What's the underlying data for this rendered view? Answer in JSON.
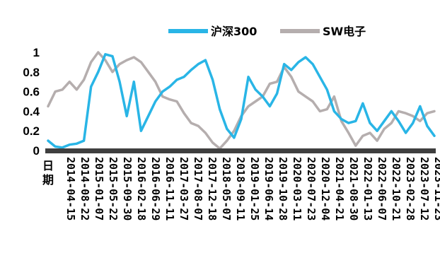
{
  "chart_data": {
    "type": "line",
    "title": "",
    "xlabel": "日期",
    "ylabel": "",
    "ylim": [
      0,
      1
    ],
    "yticks": [
      "0",
      "0.2",
      "0.4",
      "0.6",
      "0.8",
      "1"
    ],
    "x_ticks": [
      "2014-04-15",
      "2014-08-22",
      "2015-01-07",
      "2015-05-22",
      "2015-09-30",
      "2016-02-18",
      "2016-06-29",
      "2016-11-11",
      "2017-03-27",
      "2017-08-07",
      "2017-12-18",
      "2018-05-07",
      "2018-09-11",
      "2019-01-25",
      "2019-06-14",
      "2019-10-28",
      "2020-03-11",
      "2020-07-23",
      "2020-12-04",
      "2021-04-21",
      "2021-08-30",
      "2022-01-13",
      "2022-06-07",
      "2022-10-21",
      "2023-02-28",
      "2023-07-12",
      "2023-11-23"
    ],
    "legend_position": "top-right",
    "grid": false,
    "series": [
      {
        "name": "沪深300",
        "color": "#29b5e6",
        "values": [
          0.1,
          0.04,
          0.03,
          0.06,
          0.07,
          0.1,
          0.65,
          0.8,
          0.98,
          0.96,
          0.7,
          0.35,
          0.7,
          0.2,
          0.35,
          0.5,
          0.6,
          0.65,
          0.72,
          0.75,
          0.82,
          0.88,
          0.92,
          0.72,
          0.42,
          0.22,
          0.13,
          0.32,
          0.75,
          0.62,
          0.55,
          0.45,
          0.58,
          0.88,
          0.82,
          0.9,
          0.95,
          0.88,
          0.75,
          0.62,
          0.4,
          0.32,
          0.28,
          0.3,
          0.48,
          0.28,
          0.2,
          0.3,
          0.4,
          0.3,
          0.18,
          0.28,
          0.45,
          0.25,
          0.15
        ]
      },
      {
        "name": "SW电子",
        "color": "#b5aeae",
        "values": [
          0.45,
          0.6,
          0.62,
          0.7,
          0.62,
          0.72,
          0.9,
          1.0,
          0.92,
          0.8,
          0.88,
          0.92,
          0.95,
          0.9,
          0.8,
          0.7,
          0.55,
          0.52,
          0.5,
          0.38,
          0.28,
          0.25,
          0.18,
          0.08,
          0.02,
          0.1,
          0.2,
          0.35,
          0.45,
          0.5,
          0.55,
          0.68,
          0.7,
          0.85,
          0.75,
          0.6,
          0.55,
          0.5,
          0.4,
          0.42,
          0.55,
          0.3,
          0.18,
          0.05,
          0.15,
          0.18,
          0.1,
          0.22,
          0.28,
          0.4,
          0.38,
          0.35,
          0.3,
          0.38,
          0.4
        ]
      }
    ]
  }
}
